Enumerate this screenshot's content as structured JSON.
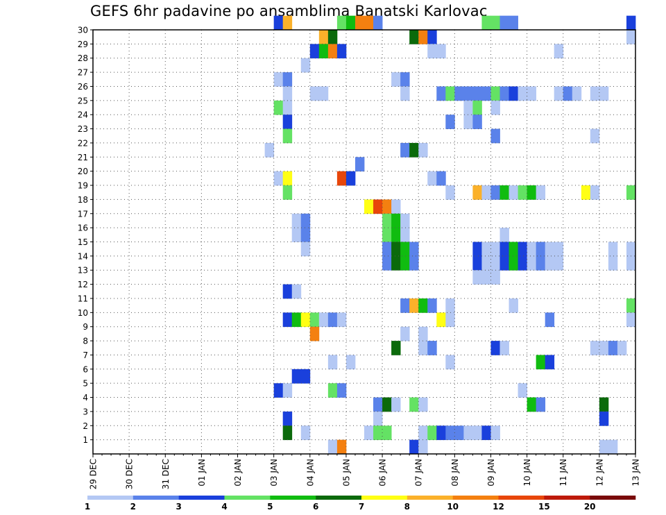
{
  "chart_data": {
    "type": "heatmap",
    "title": "GEFS 6hr padavine po ansamblima Banatski Karlovac",
    "x_tick_labels": [
      "29 DEC",
      "30 DEC",
      "31 DEC",
      "01 JAN",
      "02 JAN",
      "03 JAN",
      "04 JAN",
      "05 JAN",
      "06 JAN",
      "07 JAN",
      "08 JAN",
      "09 JAN",
      "10 JAN",
      "11 JAN",
      "12 JAN",
      "13 JAN"
    ],
    "y_tick_labels": [
      "1",
      "2",
      "3",
      "4",
      "5",
      "6",
      "7",
      "8",
      "9",
      "10",
      "11",
      "12",
      "13",
      "14",
      "15",
      "16",
      "17",
      "18",
      "19",
      "20",
      "21",
      "22",
      "23",
      "24",
      "25",
      "26",
      "27",
      "28",
      "29",
      "30"
    ],
    "x_range_steps": [
      0,
      60
    ],
    "y_range_members": [
      0,
      30
    ],
    "x_step_hours": 6,
    "grid": true,
    "legend": {
      "placement": "bottom",
      "boundaries": [
        "1",
        "2",
        "3",
        "4",
        "5",
        "6",
        "7",
        "8",
        "10",
        "12",
        "15",
        "20"
      ],
      "colors": [
        "#b4c8f4",
        "#5a82ea",
        "#1a40dc",
        "#64e264",
        "#10bc10",
        "#0b6a0b",
        "#ffff14",
        "#fbb12a",
        "#f48010",
        "#e8460a",
        "#be1a0a",
        "#7a0a0a"
      ]
    },
    "cells": [
      [
        20,
        30,
        2
      ],
      [
        21,
        30,
        7
      ],
      [
        27,
        30,
        3
      ],
      [
        28,
        30,
        4
      ],
      [
        29,
        30,
        8
      ],
      [
        30,
        30,
        8
      ],
      [
        31,
        30,
        1
      ],
      [
        43,
        30,
        3
      ],
      [
        44,
        30,
        3
      ],
      [
        45,
        30,
        1
      ],
      [
        46,
        30,
        1
      ],
      [
        59,
        30,
        2
      ],
      [
        25,
        29,
        7
      ],
      [
        26,
        29,
        5
      ],
      [
        35,
        29,
        5
      ],
      [
        36,
        29,
        8
      ],
      [
        37,
        29,
        2
      ],
      [
        59,
        29,
        0
      ],
      [
        24,
        28,
        2
      ],
      [
        25,
        28,
        4
      ],
      [
        26,
        28,
        8
      ],
      [
        27,
        28,
        2
      ],
      [
        37,
        28,
        0
      ],
      [
        38,
        28,
        0
      ],
      [
        51,
        28,
        0
      ],
      [
        23,
        27,
        0
      ],
      [
        20,
        26,
        0
      ],
      [
        21,
        26,
        1
      ],
      [
        33,
        26,
        0
      ],
      [
        34,
        26,
        1
      ],
      [
        21,
        25,
        0
      ],
      [
        24,
        25,
        0
      ],
      [
        25,
        25,
        0
      ],
      [
        34,
        25,
        0
      ],
      [
        38,
        25,
        1
      ],
      [
        39,
        25,
        3
      ],
      [
        40,
        25,
        1
      ],
      [
        41,
        25,
        1
      ],
      [
        42,
        25,
        1
      ],
      [
        43,
        25,
        1
      ],
      [
        44,
        25,
        3
      ],
      [
        45,
        25,
        1
      ],
      [
        46,
        25,
        2
      ],
      [
        47,
        25,
        0
      ],
      [
        48,
        25,
        0
      ],
      [
        51,
        25,
        0
      ],
      [
        52,
        25,
        1
      ],
      [
        53,
        25,
        0
      ],
      [
        55,
        25,
        0
      ],
      [
        56,
        25,
        0
      ],
      [
        20,
        24,
        3
      ],
      [
        21,
        24,
        0
      ],
      [
        41,
        24,
        0
      ],
      [
        42,
        24,
        3
      ],
      [
        44,
        24,
        0
      ],
      [
        21,
        23,
        2
      ],
      [
        39,
        23,
        1
      ],
      [
        41,
        23,
        0
      ],
      [
        42,
        23,
        1
      ],
      [
        21,
        22,
        3
      ],
      [
        44,
        22,
        1
      ],
      [
        55,
        22,
        0
      ],
      [
        19,
        21,
        0
      ],
      [
        34,
        21,
        1
      ],
      [
        35,
        21,
        5
      ],
      [
        36,
        21,
        0
      ],
      [
        29,
        20,
        1
      ],
      [
        20,
        19,
        0
      ],
      [
        21,
        19,
        6
      ],
      [
        27,
        19,
        9
      ],
      [
        28,
        19,
        2
      ],
      [
        37,
        19,
        0
      ],
      [
        38,
        19,
        1
      ],
      [
        21,
        18,
        3
      ],
      [
        39,
        18,
        0
      ],
      [
        42,
        18,
        7
      ],
      [
        43,
        18,
        0
      ],
      [
        44,
        18,
        1
      ],
      [
        45,
        18,
        4
      ],
      [
        46,
        18,
        0
      ],
      [
        47,
        18,
        3
      ],
      [
        48,
        18,
        4
      ],
      [
        49,
        18,
        0
      ],
      [
        54,
        18,
        6
      ],
      [
        55,
        18,
        0
      ],
      [
        59,
        18,
        3
      ],
      [
        30,
        17,
        6
      ],
      [
        31,
        17,
        9
      ],
      [
        32,
        17,
        8
      ],
      [
        33,
        17,
        0
      ],
      [
        22,
        16,
        0
      ],
      [
        23,
        16,
        1
      ],
      [
        32,
        16,
        3
      ],
      [
        33,
        16,
        4
      ],
      [
        34,
        16,
        0
      ],
      [
        22,
        15,
        0
      ],
      [
        23,
        15,
        1
      ],
      [
        32,
        15,
        3
      ],
      [
        33,
        15,
        4
      ],
      [
        34,
        15,
        0
      ],
      [
        45,
        15,
        0
      ],
      [
        23,
        14,
        0
      ],
      [
        32,
        14,
        1
      ],
      [
        33,
        14,
        5
      ],
      [
        34,
        14,
        4
      ],
      [
        35,
        14,
        1
      ],
      [
        42,
        14,
        2
      ],
      [
        43,
        14,
        0
      ],
      [
        44,
        14,
        0
      ],
      [
        45,
        14,
        2
      ],
      [
        46,
        14,
        4
      ],
      [
        47,
        14,
        2
      ],
      [
        48,
        14,
        0
      ],
      [
        49,
        14,
        1
      ],
      [
        50,
        14,
        0
      ],
      [
        51,
        14,
        0
      ],
      [
        57,
        14,
        0
      ],
      [
        59,
        14,
        0
      ],
      [
        32,
        13,
        1
      ],
      [
        33,
        13,
        5
      ],
      [
        34,
        13,
        4
      ],
      [
        35,
        13,
        1
      ],
      [
        42,
        13,
        2
      ],
      [
        43,
        13,
        0
      ],
      [
        44,
        13,
        0
      ],
      [
        45,
        13,
        2
      ],
      [
        46,
        13,
        4
      ],
      [
        47,
        13,
        2
      ],
      [
        48,
        13,
        0
      ],
      [
        49,
        13,
        1
      ],
      [
        50,
        13,
        0
      ],
      [
        51,
        13,
        0
      ],
      [
        57,
        13,
        0
      ],
      [
        59,
        13,
        0
      ],
      [
        42,
        12,
        0
      ],
      [
        43,
        12,
        0
      ],
      [
        44,
        12,
        0
      ],
      [
        21,
        11,
        2
      ],
      [
        22,
        11,
        0
      ],
      [
        34,
        10,
        1
      ],
      [
        35,
        10,
        7
      ],
      [
        36,
        10,
        4
      ],
      [
        37,
        10,
        1
      ],
      [
        39,
        10,
        0
      ],
      [
        46,
        10,
        0
      ],
      [
        59,
        10,
        3
      ],
      [
        21,
        9,
        2
      ],
      [
        22,
        9,
        4
      ],
      [
        23,
        9,
        6
      ],
      [
        24,
        9,
        3
      ],
      [
        25,
        9,
        0
      ],
      [
        26,
        9,
        1
      ],
      [
        27,
        9,
        0
      ],
      [
        38,
        9,
        6
      ],
      [
        39,
        9,
        0
      ],
      [
        50,
        9,
        1
      ],
      [
        59,
        9,
        0
      ],
      [
        24,
        8,
        8
      ],
      [
        34,
        8,
        0
      ],
      [
        36,
        8,
        0
      ],
      [
        33,
        7,
        5
      ],
      [
        36,
        7,
        0
      ],
      [
        37,
        7,
        1
      ],
      [
        44,
        7,
        2
      ],
      [
        45,
        7,
        0
      ],
      [
        55,
        7,
        0
      ],
      [
        56,
        7,
        0
      ],
      [
        57,
        7,
        1
      ],
      [
        58,
        7,
        0
      ],
      [
        26,
        6,
        0
      ],
      [
        28,
        6,
        0
      ],
      [
        39,
        6,
        0
      ],
      [
        49,
        6,
        4
      ],
      [
        50,
        6,
        2
      ],
      [
        22,
        5,
        2
      ],
      [
        23,
        5,
        2
      ],
      [
        20,
        4,
        2
      ],
      [
        21,
        4,
        0
      ],
      [
        26,
        4,
        3
      ],
      [
        27,
        4,
        1
      ],
      [
        47,
        4,
        0
      ],
      [
        31,
        3,
        1
      ],
      [
        32,
        3,
        5
      ],
      [
        33,
        3,
        0
      ],
      [
        35,
        3,
        3
      ],
      [
        36,
        3,
        0
      ],
      [
        48,
        3,
        4
      ],
      [
        49,
        3,
        1
      ],
      [
        56,
        3,
        5
      ],
      [
        21,
        2,
        2
      ],
      [
        31,
        2,
        0
      ],
      [
        56,
        2,
        2
      ],
      [
        21,
        1,
        5
      ],
      [
        23,
        1,
        0
      ],
      [
        30,
        1,
        0
      ],
      [
        31,
        1,
        3
      ],
      [
        32,
        1,
        3
      ],
      [
        36,
        1,
        0
      ],
      [
        37,
        1,
        3
      ],
      [
        38,
        1,
        2
      ],
      [
        39,
        1,
        1
      ],
      [
        40,
        1,
        1
      ],
      [
        41,
        1,
        0
      ],
      [
        42,
        1,
        0
      ],
      [
        43,
        1,
        2
      ],
      [
        44,
        1,
        0
      ],
      [
        26,
        0,
        0
      ],
      [
        27,
        0,
        8
      ],
      [
        35,
        0,
        2
      ],
      [
        36,
        0,
        0
      ],
      [
        56,
        0,
        0
      ],
      [
        57,
        0,
        0
      ]
    ]
  }
}
